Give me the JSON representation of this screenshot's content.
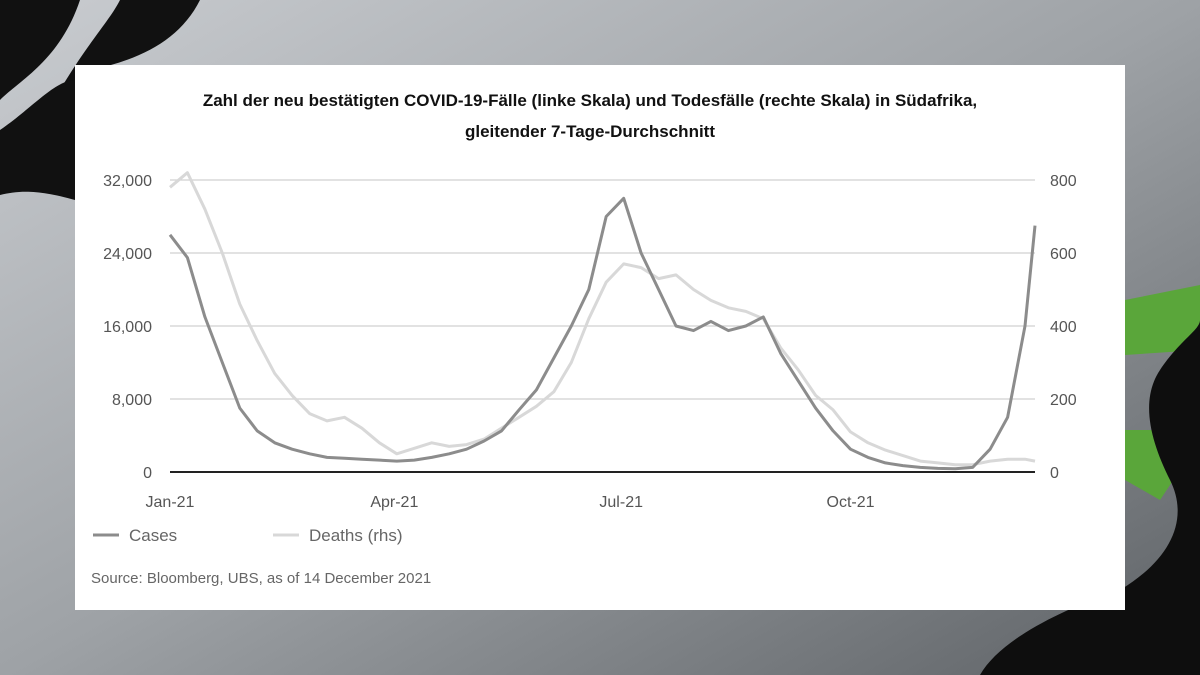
{
  "chart_data": {
    "type": "line",
    "title_line1": "Zahl der neu bestätigten COVID-19-Fälle (linke Skala) und Todesfälle (rechte Skala) in Südafrika,",
    "title_line2": "gleitender 7-Tage-Durchschnitt",
    "x_ticks": [
      "Jan-21",
      "Apr-21",
      "Jul-21",
      "Oct-21"
    ],
    "y_left_ticks": [
      "32,000",
      "24,000",
      "16,000",
      "8,000",
      "0"
    ],
    "y_right_ticks": [
      "800",
      "600",
      "400",
      "200",
      "0"
    ],
    "y_left_lim": [
      0,
      32000
    ],
    "y_right_lim": [
      0,
      800
    ],
    "grid": true,
    "legend_position": "bottom-left",
    "series": [
      {
        "name": "Cases",
        "axis": "left",
        "color": "#8c8c8c",
        "x": [
          "2021-01-01",
          "2021-01-08",
          "2021-01-15",
          "2021-01-22",
          "2021-01-29",
          "2021-02-05",
          "2021-02-12",
          "2021-02-19",
          "2021-02-26",
          "2021-03-05",
          "2021-03-12",
          "2021-03-19",
          "2021-03-26",
          "2021-04-02",
          "2021-04-09",
          "2021-04-16",
          "2021-04-23",
          "2021-04-30",
          "2021-05-07",
          "2021-05-14",
          "2021-05-21",
          "2021-05-28",
          "2021-06-04",
          "2021-06-11",
          "2021-06-18",
          "2021-06-25",
          "2021-07-02",
          "2021-07-09",
          "2021-07-16",
          "2021-07-23",
          "2021-07-30",
          "2021-08-06",
          "2021-08-13",
          "2021-08-20",
          "2021-08-27",
          "2021-09-03",
          "2021-09-10",
          "2021-09-17",
          "2021-09-24",
          "2021-10-01",
          "2021-10-08",
          "2021-10-15",
          "2021-10-22",
          "2021-10-29",
          "2021-11-05",
          "2021-11-12",
          "2021-11-19",
          "2021-11-26",
          "2021-12-03",
          "2021-12-10",
          "2021-12-14"
        ],
        "values": [
          26000,
          23500,
          17000,
          12000,
          7000,
          4500,
          3200,
          2500,
          2000,
          1600,
          1500,
          1400,
          1300,
          1200,
          1300,
          1600,
          2000,
          2500,
          3400,
          4500,
          6800,
          9000,
          12500,
          16000,
          20000,
          28000,
          30000,
          24000,
          20000,
          16000,
          15500,
          16500,
          15500,
          16000,
          17000,
          13000,
          10000,
          7000,
          4500,
          2500,
          1600,
          1000,
          700,
          500,
          400,
          350,
          500,
          2500,
          6000,
          16000,
          27000
        ]
      },
      {
        "name": "Deaths (rhs)",
        "axis": "right",
        "color": "#d8d8d8",
        "x": [
          "2021-01-01",
          "2021-01-08",
          "2021-01-15",
          "2021-01-22",
          "2021-01-29",
          "2021-02-05",
          "2021-02-12",
          "2021-02-19",
          "2021-02-26",
          "2021-03-05",
          "2021-03-12",
          "2021-03-19",
          "2021-03-26",
          "2021-04-02",
          "2021-04-09",
          "2021-04-16",
          "2021-04-23",
          "2021-04-30",
          "2021-05-07",
          "2021-05-14",
          "2021-05-21",
          "2021-05-28",
          "2021-06-04",
          "2021-06-11",
          "2021-06-18",
          "2021-06-25",
          "2021-07-02",
          "2021-07-09",
          "2021-07-16",
          "2021-07-23",
          "2021-07-30",
          "2021-08-06",
          "2021-08-13",
          "2021-08-20",
          "2021-08-27",
          "2021-09-03",
          "2021-09-10",
          "2021-09-17",
          "2021-09-24",
          "2021-10-01",
          "2021-10-08",
          "2021-10-15",
          "2021-10-22",
          "2021-10-29",
          "2021-11-05",
          "2021-11-12",
          "2021-11-19",
          "2021-11-26",
          "2021-12-03",
          "2021-12-10",
          "2021-12-14"
        ],
        "values": [
          780,
          820,
          720,
          600,
          460,
          360,
          270,
          210,
          160,
          140,
          150,
          120,
          80,
          50,
          65,
          80,
          70,
          75,
          90,
          120,
          150,
          180,
          220,
          300,
          420,
          520,
          570,
          560,
          530,
          540,
          500,
          470,
          450,
          440,
          420,
          340,
          280,
          210,
          170,
          110,
          80,
          60,
          45,
          30,
          25,
          20,
          20,
          30,
          35,
          35,
          30
        ]
      }
    ],
    "legend": [
      "Cases",
      "Deaths (rhs)"
    ],
    "source": "Source: Bloomberg, UBS, as of 14 December 2021"
  }
}
